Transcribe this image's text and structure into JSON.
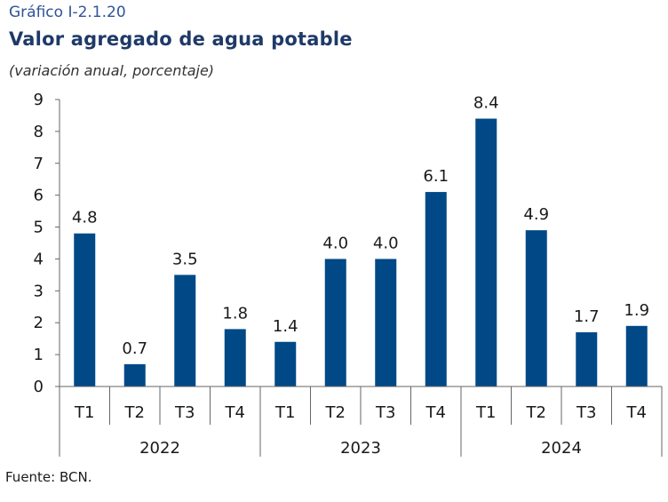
{
  "header": {
    "kicker": "Gráfico I-2.1.20",
    "title": "Valor agregado de agua potable",
    "subtitle": "(variación anual, porcentaje)"
  },
  "footer": {
    "source": "Fuente: BCN."
  },
  "colors": {
    "bar": "#004986",
    "axis": "#666666",
    "text": "#1a1a1a"
  },
  "chart_data": {
    "type": "bar",
    "categories": [
      "T1",
      "T2",
      "T3",
      "T4",
      "T1",
      "T2",
      "T3",
      "T4",
      "T1",
      "T2",
      "T3",
      "T4"
    ],
    "groups": [
      {
        "label": "2022",
        "count": 4
      },
      {
        "label": "2023",
        "count": 4
      },
      {
        "label": "2024",
        "count": 4
      }
    ],
    "values": [
      4.8,
      0.7,
      3.5,
      1.8,
      1.4,
      4.0,
      4.0,
      6.1,
      8.4,
      4.9,
      1.7,
      1.9
    ],
    "value_labels": [
      "4.8",
      "0.7",
      "3.5",
      "1.8",
      "1.4",
      "4.0",
      "4.0",
      "6.1",
      "8.4",
      "4.9",
      "1.7",
      "1.9"
    ],
    "yticks": [
      "0",
      "1",
      "2",
      "3",
      "4",
      "5",
      "6",
      "7",
      "8",
      "9"
    ],
    "ylim": [
      0,
      9
    ],
    "grid": false
  }
}
